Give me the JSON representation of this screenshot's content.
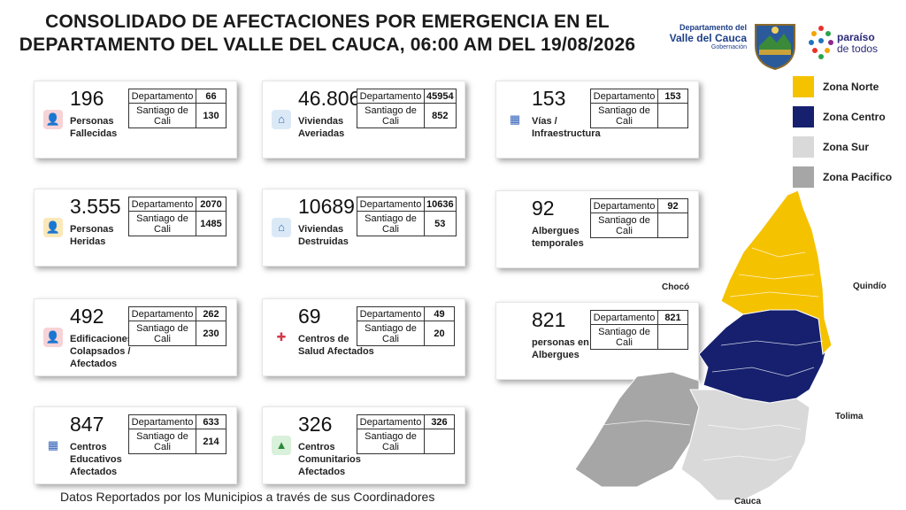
{
  "title_line1": "CONSOLIDADO DE AFECTACIONES POR EMERGENCIA EN EL",
  "title_line2": "DEPARTAMENTO DEL VALLE DEL CAUCA, 06:00 AM DEL 19/08/2026",
  "gov": {
    "line1": "Departamento del",
    "line2": "Valle del Cauca",
    "line3": "Gobernación"
  },
  "paraiso": {
    "line1": "paraíso",
    "line2": "de todos"
  },
  "legend": [
    {
      "label": "Zona Norte",
      "color": "#f5c200"
    },
    {
      "label": "Zona Centro",
      "color": "#16206e"
    },
    {
      "label": "Zona Sur",
      "color": "#d9d9d9"
    },
    {
      "label": "Zona Pacifico",
      "color": "#a6a6a6"
    }
  ],
  "cards": [
    {
      "number": "196",
      "label": "Personas Fallecidas",
      "icon": "person-icon",
      "dep": "66",
      "cali": "130",
      "k1": "Departamento",
      "k2": "Santiago de Cali"
    },
    {
      "number": "46.806",
      "label": "Viviendas Averiadas",
      "icon": "house-icon",
      "dep": "45954",
      "cali": "852",
      "k1": "Departamento",
      "k2": "Santiago de Cali"
    },
    {
      "number": "153",
      "label": "Vías / Infraestructura",
      "icon": "building-icon",
      "dep": "153",
      "cali": "",
      "k1": "Departamento",
      "k2": "Santiago de Cali"
    },
    {
      "number": "3.555",
      "label": "Personas Heridas",
      "icon": "injured-person-icon",
      "dep": "2070",
      "cali": "1485",
      "k1": "Departamento",
      "k2": "Santiago de Cali"
    },
    {
      "number": "10689",
      "label": "Viviendas Destruidas",
      "icon": "destroyed-house-icon",
      "dep": "10636",
      "cali": "53",
      "k1": "Departamento",
      "k2": "Santiago de Cali"
    },
    {
      "number": "92",
      "label": "Albergues temporales",
      "icon": "",
      "dep": "92",
      "cali": "",
      "k1": "Departamento",
      "k2": "Santiago de Cali"
    },
    {
      "number": "492",
      "label": "Edificaciones Colapsados / Afectados",
      "icon": "collapsed-building-icon",
      "dep": "262",
      "cali": "230",
      "k1": "Departamento",
      "k2": "Santiago de Cali"
    },
    {
      "number": "69",
      "label": "Centros de Salud Afectados",
      "icon": "health-center-icon",
      "dep": "49",
      "cali": "20",
      "k1": "Departamento",
      "k2": "Santiago de Cali"
    },
    {
      "number": "821",
      "label": "personas en Albergues",
      "icon": "",
      "dep": "821",
      "cali": "",
      "k1": "Departamento",
      "k2": "Santiago de Cali"
    },
    {
      "number": "847",
      "label": "Centros Educativos Afectados",
      "icon": "school-icon",
      "dep": "633",
      "cali": "214",
      "k1": "Departamento",
      "k2": "Santiago de Cali"
    },
    {
      "number": "326",
      "label": "Centros Comunitarios Afectados",
      "icon": "community-center-icon",
      "dep": "326",
      "cali": "",
      "k1": "Departamento",
      "k2": "Santiago de Cali"
    }
  ],
  "map_labels": {
    "choco": "Chocó",
    "quindio": "Quindío",
    "tolima": "Tolima",
    "cauca": "Cauca"
  },
  "footer": "Datos Reportados por los Municipios a través de sus Coordinadores"
}
